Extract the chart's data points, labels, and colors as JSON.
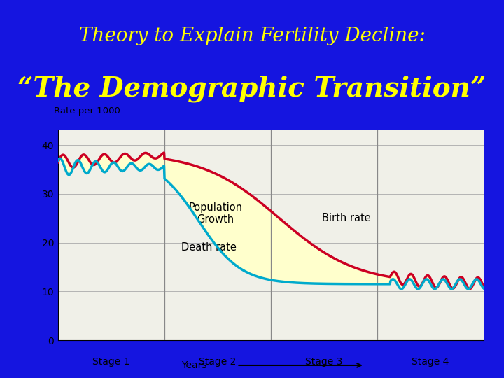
{
  "bg_color": "#1515e0",
  "title_line1": "Theory to Explain Fertility Decline:",
  "title_line2": "“The Demographic Transition”",
  "title_color": "#ffff00",
  "title1_fontsize": 20,
  "title2_fontsize": 28,
  "chart_bg": "#f0f0e8",
  "ylabel": "Rate per 1000",
  "xlabel": "Years",
  "ylim": [
    0,
    43
  ],
  "yticks": [
    0,
    10,
    20,
    30,
    40
  ],
  "stages": [
    "Stage 1",
    "Stage 2",
    "Stage 3",
    "Stage 4"
  ],
  "stage_boundaries": [
    0,
    25,
    50,
    75,
    100
  ],
  "birth_rate_color": "#cc0022",
  "death_rate_color": "#00aacc",
  "fill_color": "#ffffcc",
  "annotation_population": "Population\nGrowth",
  "annotation_birth": "Birth rate",
  "annotation_death": "Death rate"
}
